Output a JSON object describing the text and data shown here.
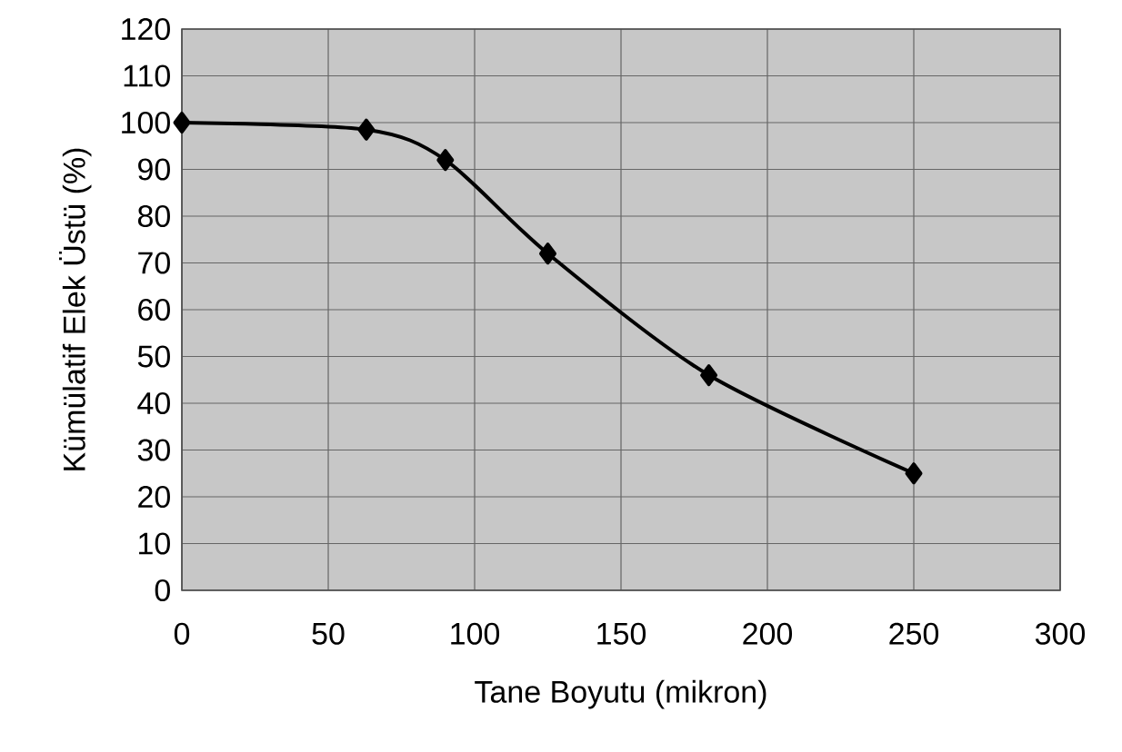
{
  "chart_data": {
    "type": "line",
    "xlabel": "Tane Boyutu (mikron)",
    "ylabel": "Kümülatif Elek Üstü (%)",
    "x": [
      0,
      63,
      90,
      125,
      180,
      250
    ],
    "series": [
      {
        "color": "#000000",
        "values": [
          100,
          98.5,
          92,
          72,
          46,
          25
        ]
      }
    ],
    "xlim": [
      0,
      300
    ],
    "xticks": [
      0,
      50,
      100,
      150,
      200,
      250,
      300
    ],
    "ylim": [
      0,
      120
    ],
    "yticks": [
      0,
      10,
      20,
      30,
      40,
      50,
      60,
      70,
      80,
      90,
      100,
      110,
      120
    ],
    "grid": true,
    "marker": "diamond",
    "line_style": "solid"
  }
}
